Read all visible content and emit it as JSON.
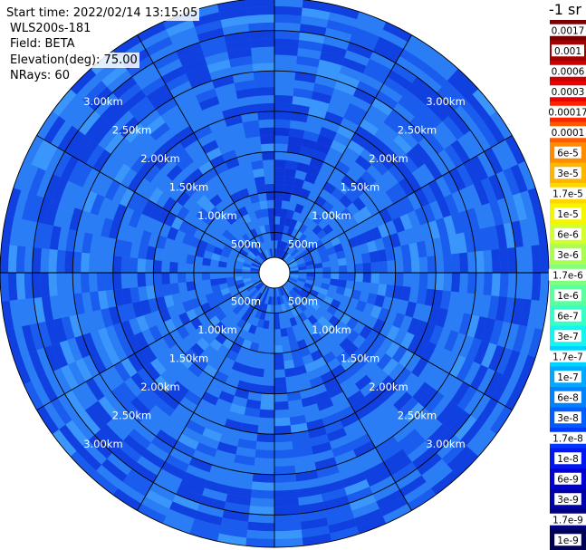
{
  "header": {
    "start_time": "Start time: 2022/02/14 13:15:05",
    "instrument": "WLS200s-181",
    "field": "Field: BETA",
    "elevation": "Elevation(deg): 75.00",
    "nrays": "NRays: 60"
  },
  "colorbar": {
    "units_label": "-1 sr",
    "labels": [
      "0.0017",
      "0.001",
      "0.0006",
      "0.0003",
      "0.00017",
      "0.0001",
      "6e-5",
      "3e-5",
      "1.7e-5",
      "1e-5",
      "6e-6",
      "3e-6",
      "1.7e-6",
      "1e-6",
      "6e-7",
      "3e-7",
      "1.7e-7",
      "1e-7",
      "6e-8",
      "3e-8",
      "1.7e-8",
      "1e-8",
      "6e-9",
      "3e-9",
      "1.7e-9",
      "1e-9"
    ],
    "colors": [
      "#7a0000",
      "#a30000",
      "#cc0000",
      "#ee0000",
      "#ff2200",
      "#ff5a00",
      "#ff8c00",
      "#ffb400",
      "#ffd700",
      "#f5f500",
      "#d2ff2e",
      "#a8ff50",
      "#82ff78",
      "#5cff9f",
      "#38ffc8",
      "#14f5f0",
      "#00d2ff",
      "#00a8ff",
      "#0082ff",
      "#005cff",
      "#0038ff",
      "#0016f0",
      "#0000d2",
      "#0000aa",
      "#00007f",
      "#000055"
    ]
  },
  "chart_data": {
    "type": "ppi",
    "field": "BETA",
    "elevation_deg": 75.0,
    "nrays": 60,
    "range_rings_m": [
      500,
      1000,
      1500,
      2000,
      2500,
      3000
    ],
    "ring_labels": [
      "500m",
      "1.00km",
      "1.50km",
      "2.00km",
      "2.50km",
      "3.00km"
    ],
    "max_range_m": 3400,
    "spoke_step_deg": 30,
    "typical_value": "1.7e-8 to 6e-9"
  }
}
